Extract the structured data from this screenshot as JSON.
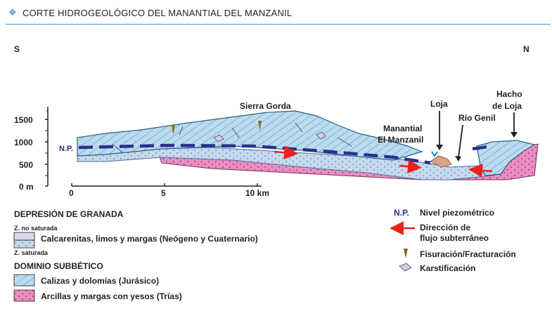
{
  "header": {
    "bullet_icon": "diamond-cluster-icon",
    "title": "CORTE HIDROGEOLÓGICO DEL MANANTIAL DEL MANZANIL"
  },
  "orientation": {
    "left": "S",
    "right": "N"
  },
  "axis": {
    "y_labels": [
      "1500",
      "1000",
      "500",
      "0 m"
    ],
    "x_labels": [
      "0",
      "5",
      "10 km"
    ]
  },
  "places": {
    "sierra_gorda": "Sierra Gorda",
    "manantial_line1": "Manantial",
    "manantial_line2": "El Manzanil",
    "loja": "Loja",
    "rio_genil": "Río Genil",
    "hacho_line1": "Hacho",
    "hacho_line2": "de Loja",
    "np": "N.P."
  },
  "legend": {
    "depresion_heading": "DEPRESIÓN DE GRANADA",
    "z_no_saturada": "Z. no saturada",
    "calcarenitas": "Calcarenitas, limos y margas (Neógeno y Cuaternario)",
    "z_saturada": "Z. saturada",
    "dominio_heading": "DOMINIO SUBBÉTICO",
    "calizas": "Calizas y dolomías (Jurásico)",
    "arcillas": "Arcillas y margas con yesos (Trías)",
    "np_abbr": "N.P.",
    "nivel": "Nivel piezométrico",
    "direccion_line1": "Dirección de",
    "direccion_line2": "flujo subterráneo",
    "fisuracion": "Fisuración/Fracturación",
    "karstificacion": "Karstificación"
  },
  "colors": {
    "accent_blue": "#4a90c8",
    "limestone": "#b9dcef",
    "calcarenite": "#c7d9ec",
    "trias_pink": "#e98fc0",
    "piezometric": "#2b2f8f",
    "flow_arrow": "#e8231c",
    "fracture": "#8a6a1a"
  }
}
